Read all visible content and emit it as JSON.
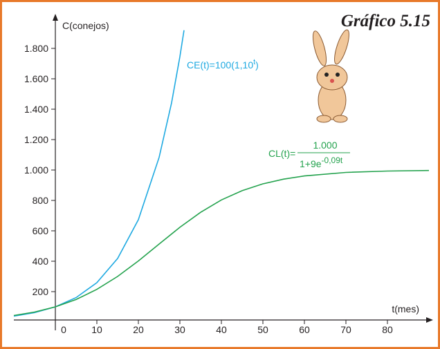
{
  "chart_data": {
    "type": "line",
    "title": "Gráfico 5.15",
    "y_label": "C(conejos)",
    "x_label": "t(mes)",
    "xlim": [
      -10,
      91
    ],
    "ylim": [
      0,
      2000
    ],
    "xticks": [
      0,
      10,
      20,
      30,
      40,
      50,
      60,
      70,
      80
    ],
    "yticks": [
      200,
      400,
      600,
      800,
      {
        "value": 1000,
        "label": "1.000"
      },
      {
        "value": 1200,
        "label": "1.200"
      },
      {
        "value": 1400,
        "label": "1.400"
      },
      {
        "value": 1600,
        "label": "1.600"
      },
      {
        "value": 1800,
        "label": "1.800"
      }
    ],
    "series": [
      {
        "color": "#1ea9e1",
        "formula": {
          "base": "CE(t)=100(1,10",
          "sup": "t",
          "close": ")"
        },
        "x": [
          -10,
          -5,
          0,
          5,
          10,
          15,
          20,
          25,
          28,
          30,
          31
        ],
        "values": [
          39,
          62,
          100,
          161,
          259,
          418,
          673,
          1083,
          1442,
          1745,
          1919
        ]
      },
      {
        "color": "#23a24d",
        "formula": {
          "prefix": "CL(t)=",
          "numerator": "1.000",
          "denominator": "1+9e",
          "exponent": "-0,09t"
        },
        "x": [
          -10,
          -5,
          0,
          5,
          10,
          15,
          20,
          25,
          30,
          35,
          40,
          45,
          50,
          55,
          60,
          70,
          80,
          90
        ],
        "values": [
          43,
          66,
          100,
          148,
          215,
          300,
          402,
          513,
          623,
          722,
          803,
          864,
          909,
          940,
          961,
          984,
          993,
          997
        ]
      }
    ]
  }
}
